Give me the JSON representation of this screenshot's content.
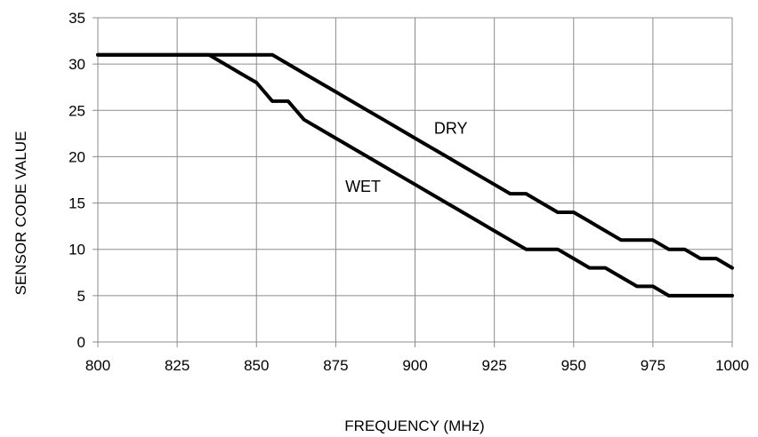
{
  "chart_data": {
    "type": "line",
    "title": "",
    "xlabel": "FREQUENCY (MHz)",
    "ylabel": "SENSOR CODE VALUE",
    "xlim": [
      800,
      1000
    ],
    "ylim": [
      0,
      35
    ],
    "x_ticks": [
      800,
      825,
      850,
      875,
      900,
      925,
      950,
      975,
      1000
    ],
    "y_ticks": [
      0,
      5,
      10,
      15,
      20,
      25,
      30,
      35
    ],
    "grid": true,
    "legend": "none",
    "series": [
      {
        "name": "DRY",
        "points": [
          [
            800,
            31
          ],
          [
            855,
            31
          ],
          [
            860,
            30
          ],
          [
            865,
            29
          ],
          [
            870,
            28
          ],
          [
            875,
            27
          ],
          [
            880,
            26
          ],
          [
            885,
            25
          ],
          [
            890,
            24
          ],
          [
            895,
            23
          ],
          [
            900,
            22
          ],
          [
            905,
            21
          ],
          [
            910,
            20
          ],
          [
            915,
            19
          ],
          [
            920,
            18
          ],
          [
            925,
            17
          ],
          [
            930,
            16
          ],
          [
            935,
            16
          ],
          [
            940,
            15
          ],
          [
            945,
            14
          ],
          [
            950,
            14
          ],
          [
            955,
            13
          ],
          [
            960,
            12
          ],
          [
            965,
            11
          ],
          [
            975,
            11
          ],
          [
            980,
            10
          ],
          [
            985,
            10
          ],
          [
            990,
            9
          ],
          [
            995,
            9
          ],
          [
            1000,
            8
          ]
        ]
      },
      {
        "name": "WET",
        "points": [
          [
            800,
            31
          ],
          [
            835,
            31
          ],
          [
            840,
            30
          ],
          [
            845,
            29
          ],
          [
            850,
            28
          ],
          [
            855,
            26
          ],
          [
            860,
            26
          ],
          [
            865,
            24
          ],
          [
            870,
            23
          ],
          [
            875,
            22
          ],
          [
            880,
            21
          ],
          [
            885,
            20
          ],
          [
            890,
            19
          ],
          [
            895,
            18
          ],
          [
            900,
            17
          ],
          [
            905,
            16
          ],
          [
            910,
            15
          ],
          [
            915,
            14
          ],
          [
            920,
            13
          ],
          [
            925,
            12
          ],
          [
            930,
            11
          ],
          [
            935,
            10
          ],
          [
            945,
            10
          ],
          [
            950,
            9
          ],
          [
            955,
            8
          ],
          [
            960,
            8
          ],
          [
            965,
            7
          ],
          [
            970,
            6
          ],
          [
            975,
            6
          ],
          [
            980,
            5
          ],
          [
            1000,
            5
          ]
        ]
      }
    ],
    "annotations": [
      {
        "text": "DRY",
        "x": 906,
        "y": 22.5
      },
      {
        "text": "WET",
        "x": 878,
        "y": 16.2
      }
    ]
  }
}
